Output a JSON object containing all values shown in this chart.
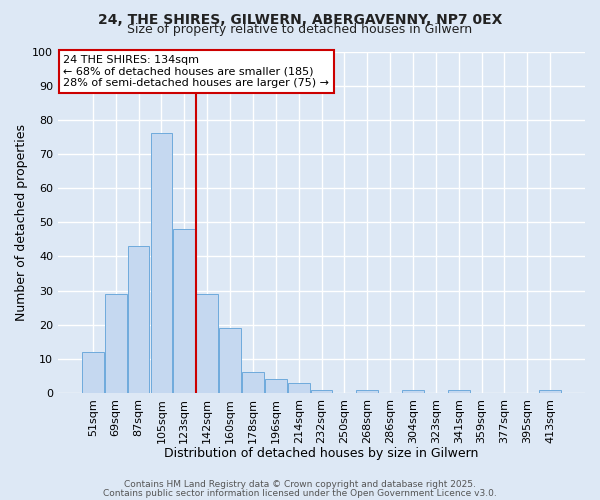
{
  "title1": "24, THE SHIRES, GILWERN, ABERGAVENNY, NP7 0EX",
  "title2": "Size of property relative to detached houses in Gilwern",
  "xlabel": "Distribution of detached houses by size in Gilwern",
  "ylabel": "Number of detached properties",
  "bar_values": [
    12,
    29,
    43,
    76,
    48,
    29,
    19,
    6,
    4,
    3,
    1,
    0,
    1,
    0,
    1,
    0,
    1,
    0,
    0,
    0,
    1
  ],
  "bar_labels": [
    "51sqm",
    "69sqm",
    "87sqm",
    "105sqm",
    "123sqm",
    "142sqm",
    "160sqm",
    "178sqm",
    "196sqm",
    "214sqm",
    "232sqm",
    "250sqm",
    "268sqm",
    "286sqm",
    "304sqm",
    "323sqm",
    "341sqm",
    "359sqm",
    "377sqm",
    "395sqm",
    "413sqm"
  ],
  "bar_color": "#c5d8f0",
  "bar_edge_color": "#6eaadc",
  "background_color": "#dde8f5",
  "grid_color": "#ffffff",
  "vline_color": "#cc0000",
  "annotation_line1": "24 THE SHIRES: 134sqm",
  "annotation_line2": "← 68% of detached houses are smaller (185)",
  "annotation_line3": "28% of semi-detached houses are larger (75) →",
  "annotation_box_color": "#cc0000",
  "annotation_box_facecolor": "#ffffff",
  "ylim": [
    0,
    100
  ],
  "yticks": [
    0,
    10,
    20,
    30,
    40,
    50,
    60,
    70,
    80,
    90,
    100
  ],
  "footer1": "Contains HM Land Registry data © Crown copyright and database right 2025.",
  "footer2": "Contains public sector information licensed under the Open Government Licence v3.0.",
  "title_fontsize": 10,
  "title2_fontsize": 9,
  "axis_label_fontsize": 9,
  "tick_fontsize": 8,
  "annotation_fontsize": 8,
  "footer_fontsize": 6.5
}
